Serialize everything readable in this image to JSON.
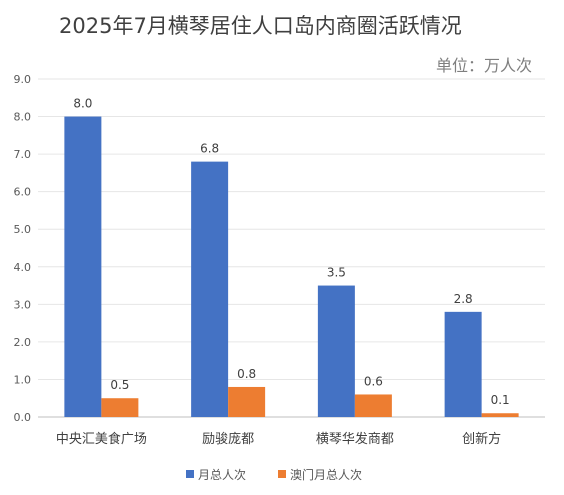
{
  "chart_data": {
    "type": "bar",
    "title": "2025年7月横琴居住人口岛内商圈活跃情况",
    "unit": "单位：万人次",
    "categories": [
      "中央汇美食广场",
      "励骏庞都",
      "横琴华发商都",
      "创新方"
    ],
    "series": [
      {
        "name": "月总人次",
        "values": [
          8.0,
          6.8,
          3.5,
          2.8
        ],
        "labels": [
          "8.0",
          "6.8",
          "3.5",
          "2.8"
        ],
        "color": "#4472c4"
      },
      {
        "name": "澳门月总人次",
        "values": [
          0.5,
          0.8,
          0.6,
          0.1
        ],
        "labels": [
          "0.5",
          "0.8",
          "0.6",
          "0.1"
        ],
        "color": "#ed7d31"
      }
    ],
    "ylim": [
      0,
      9
    ],
    "yticks": [
      "0.0",
      "1.0",
      "2.0",
      "3.0",
      "4.0",
      "5.0",
      "6.0",
      "7.0",
      "8.0",
      "9.0"
    ],
    "grid": true,
    "legend_position": "bottom"
  }
}
